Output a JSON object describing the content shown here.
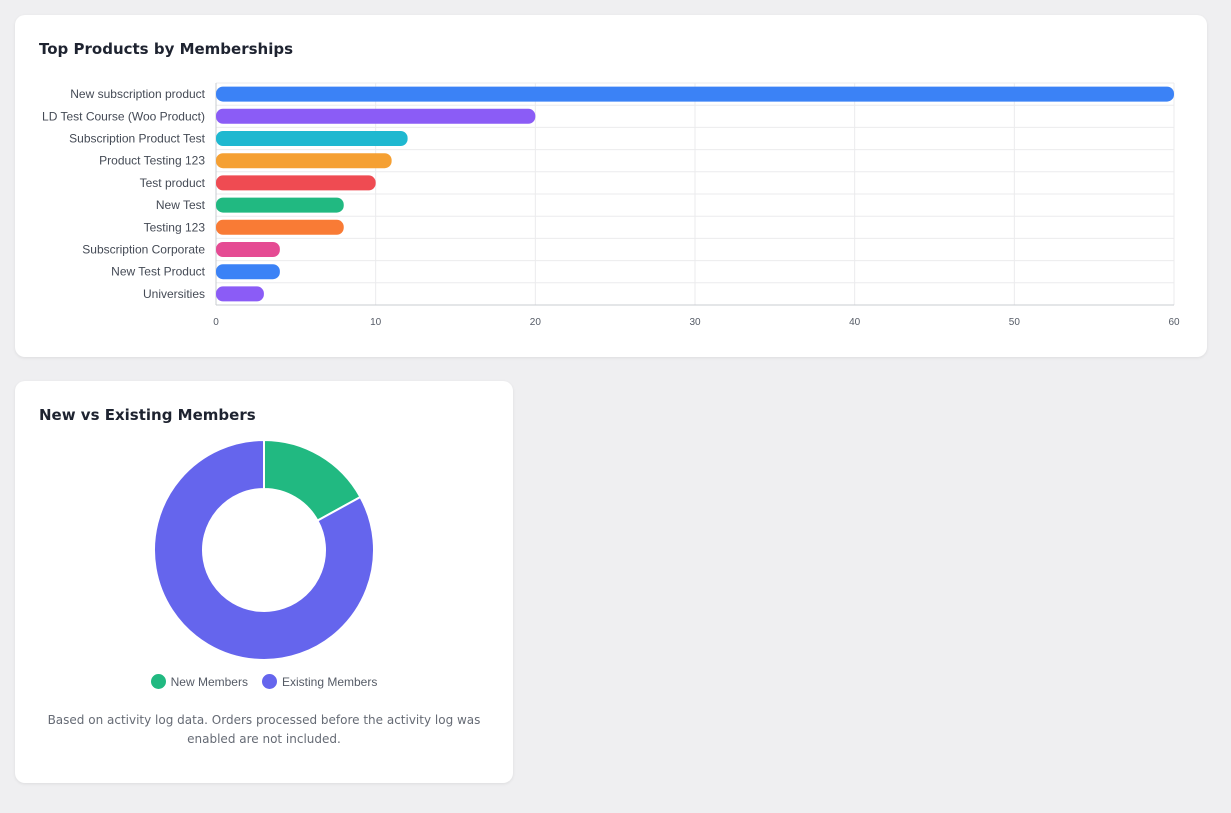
{
  "top_products": {
    "title": "Top Products by Memberships",
    "chart_data": {
      "type": "bar",
      "orientation": "horizontal",
      "categories": [
        "New subscription product",
        "LD Test Course (Woo Product)",
        "Subscription Product Test",
        "Product Testing 123",
        "Test product",
        "New Test",
        "Testing 123",
        "Subscription Corporate",
        "New Test Product",
        "Universities"
      ],
      "values": [
        60,
        20,
        12,
        11,
        10,
        8,
        8,
        4,
        4,
        3
      ],
      "colors": [
        "#3b82f6",
        "#8b5cf6",
        "#1fb8d0",
        "#f5a033",
        "#ef4b52",
        "#21b981",
        "#f97b35",
        "#e54b93",
        "#3b82f6",
        "#8b5cf6"
      ],
      "xlim": [
        0,
        60
      ],
      "xticks": [
        "0",
        "10",
        "20",
        "30",
        "40",
        "50",
        "60"
      ],
      "grid": true
    }
  },
  "members": {
    "title": "New vs Existing Members",
    "chart_data": {
      "type": "pie",
      "style": "donut",
      "labels": [
        "New Members",
        "Existing Members"
      ],
      "values": [
        17,
        83
      ],
      "colors": [
        "#21b981",
        "#6565ed"
      ]
    },
    "legend": [
      {
        "label": "New Members",
        "color": "#21b981"
      },
      {
        "label": "Existing Members",
        "color": "#6565ed"
      }
    ],
    "note": "Based on activity log data. Orders processed before the activity log was enabled are not included."
  }
}
